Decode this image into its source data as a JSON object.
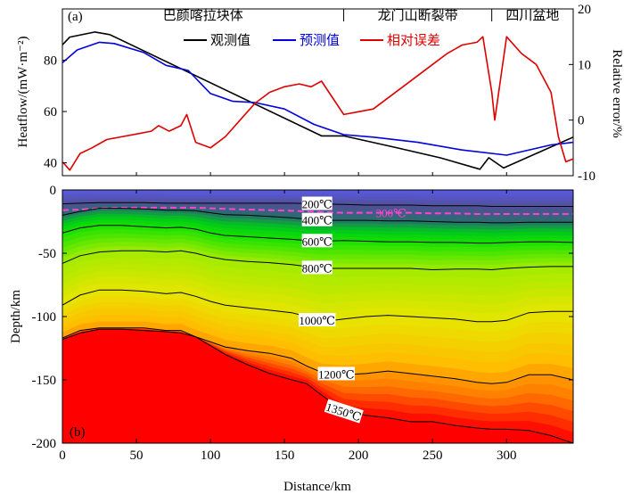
{
  "colors": {
    "observed": "#000000",
    "predicted": "#0000dd",
    "relative_error": "#dd0000",
    "isotherm_300": "#ff44cc",
    "cold": "#5a5ae6",
    "hot": "#ff0000"
  },
  "chart_data": [
    {
      "type": "line",
      "panel_label": "(a)",
      "regions": [
        {
          "name": "巴颜喀拉块体",
          "x_from": 0,
          "x_to": 190
        },
        {
          "name": "龙门山断裂带",
          "x_from": 190,
          "x_to": 290
        },
        {
          "name": "四川盆地",
          "x_from": 290,
          "x_to": 345
        }
      ],
      "region_boundaries": [
        190,
        290
      ],
      "xlim": [
        0,
        345
      ],
      "ylim": [
        35,
        100
      ],
      "ylabel": "Heatflow/(mW·m⁻²)",
      "yticks": [
        40,
        60,
        80
      ],
      "y2lim": [
        -10,
        20
      ],
      "y2label": "Relative error/%",
      "y2ticks": [
        -10,
        0,
        10,
        20
      ],
      "legend_position": "top-right",
      "series": [
        {
          "name": "观测值",
          "axis": "left",
          "x": [
            0,
            5,
            22,
            32,
            175,
            190,
            225,
            255,
            282,
            288,
            298,
            345
          ],
          "y": [
            86,
            89,
            91,
            90,
            50.5,
            50.5,
            46,
            42,
            37.5,
            42,
            38,
            50
          ]
        },
        {
          "name": "预测值",
          "axis": "left",
          "x": [
            0,
            10,
            25,
            35,
            55,
            70,
            85,
            100,
            115,
            130,
            150,
            170,
            190,
            210,
            240,
            270,
            300,
            330,
            345
          ],
          "y": [
            79,
            84,
            87,
            86.5,
            83,
            78,
            76,
            67,
            64,
            63.5,
            61,
            55,
            51,
            50,
            48,
            45,
            43,
            47,
            48
          ]
        },
        {
          "name": "相对误差",
          "axis": "right",
          "x": [
            0,
            5,
            12,
            20,
            30,
            40,
            50,
            60,
            65,
            72,
            80,
            84,
            90,
            100,
            110,
            120,
            130,
            140,
            150,
            160,
            168,
            175,
            180,
            190,
            200,
            210,
            220,
            230,
            240,
            250,
            260,
            270,
            280,
            284,
            290,
            292,
            300,
            310,
            320,
            330,
            335,
            340,
            345
          ],
          "y": [
            -7.5,
            -9,
            -6,
            -5,
            -3.5,
            -3,
            -2.5,
            -2,
            -1,
            -2,
            -1,
            1,
            -4,
            -5,
            -3,
            0,
            3,
            5,
            6,
            6.5,
            6,
            7,
            5,
            1,
            1.5,
            2,
            4,
            6,
            8,
            10,
            12,
            13.5,
            14,
            15,
            5,
            0,
            15,
            12,
            10,
            5,
            -3,
            -7.5,
            -7
          ]
        }
      ]
    },
    {
      "type": "heatmap",
      "panel_label": "(b)",
      "xlabel": "Distance/km",
      "ylabel": "Depth/km",
      "xlim": [
        0,
        345
      ],
      "ylim": [
        -200,
        0
      ],
      "xticks": [
        0,
        50,
        100,
        150,
        200,
        250,
        300
      ],
      "yticks": [
        0,
        -50,
        -100,
        -150,
        -200
      ],
      "isotherm_x": [
        0,
        12,
        25,
        40,
        55,
        70,
        80,
        90,
        100,
        110,
        125,
        140,
        155,
        165,
        175,
        190,
        205,
        220,
        235,
        250,
        265,
        280,
        290,
        300,
        315,
        330,
        345
      ],
      "isotherms": [
        {
          "label": "200℃",
          "value": 200,
          "label_x": 172,
          "depths": [
            -11,
            -10.5,
            -10,
            -10,
            -10,
            -10.5,
            -10.5,
            -10.5,
            -10.5,
            -10.5,
            -10.5,
            -10.5,
            -10.5,
            -10.8,
            -11,
            -11.5,
            -12,
            -12,
            -12,
            -12.5,
            -12.5,
            -12.5,
            -13,
            -13,
            -13,
            -13,
            -13
          ]
        },
        {
          "label": "300℃",
          "value": 300,
          "label_x": 222,
          "dashed": true,
          "depths": [
            -16,
            -15.5,
            -14.5,
            -14,
            -14,
            -14,
            -14,
            -14,
            -14.5,
            -15,
            -15.5,
            -16,
            -16.5,
            -17,
            -17.5,
            -18,
            -18,
            -18,
            -18,
            -18.5,
            -18.5,
            -19,
            -19,
            -19,
            -19,
            -19,
            -19
          ]
        },
        {
          "label": "400℃",
          "value": 400,
          "label_x": 172,
          "depths": [
            -20,
            -17,
            -14.5,
            -14.5,
            -15,
            -16,
            -16,
            -16.5,
            -18,
            -19.5,
            -20,
            -21,
            -22,
            -23,
            -24,
            -24,
            -24,
            -24.5,
            -24.5,
            -25,
            -25.5,
            -25.5,
            -26,
            -26,
            -25.5,
            -25.5,
            -25.5
          ]
        },
        {
          "label": "600℃",
          "value": 600,
          "label_x": 172,
          "depths": [
            -34,
            -30,
            -28,
            -28,
            -29,
            -30,
            -29.5,
            -31,
            -34,
            -36,
            -37,
            -38,
            -39,
            -40,
            -40.5,
            -40,
            -40.5,
            -41,
            -41,
            -41.5,
            -41.5,
            -42,
            -42,
            -41.5,
            -41,
            -41,
            -41.5
          ]
        },
        {
          "label": "800℃",
          "value": 800,
          "label_x": 172,
          "depths": [
            -58,
            -52,
            -49,
            -48,
            -48,
            -49,
            -48,
            -50,
            -53,
            -55,
            -56.5,
            -57.5,
            -59,
            -60.5,
            -62,
            -62,
            -62,
            -62,
            -62,
            -63,
            -62.5,
            -62.5,
            -63,
            -62,
            -61,
            -60.5,
            -60.5
          ]
        },
        {
          "label": "1000℃",
          "value": 1000,
          "label_x": 172,
          "depths": [
            -91,
            -83,
            -79,
            -79,
            -80,
            -82,
            -81,
            -84,
            -88,
            -91,
            -93,
            -95,
            -97,
            -100,
            -104,
            -102,
            -100,
            -99,
            -100,
            -101,
            -102,
            -104,
            -104,
            -103,
            -97,
            -96,
            -96
          ]
        },
        {
          "label": "1200℃",
          "value": 1200,
          "label_x": 185,
          "depths": [
            -117,
            -111,
            -109,
            -109,
            -109,
            -111,
            -111,
            -116,
            -120,
            -124,
            -127,
            -129,
            -133,
            -139,
            -144,
            -146,
            -145,
            -143,
            -145,
            -147,
            -149,
            -152,
            -153,
            -152,
            -146,
            -146,
            -150
          ]
        },
        {
          "label": "1350℃",
          "value": 1350,
          "label_x": 190,
          "depths": [
            -118,
            -113,
            -110,
            -110,
            -111,
            -112,
            -113,
            -116,
            -123,
            -130,
            -138,
            -145,
            -150,
            -153,
            -162,
            -175,
            -178,
            -180,
            -183,
            -183,
            -186,
            -188,
            -189,
            -189,
            -190,
            -194,
            -200
          ]
        }
      ]
    }
  ]
}
